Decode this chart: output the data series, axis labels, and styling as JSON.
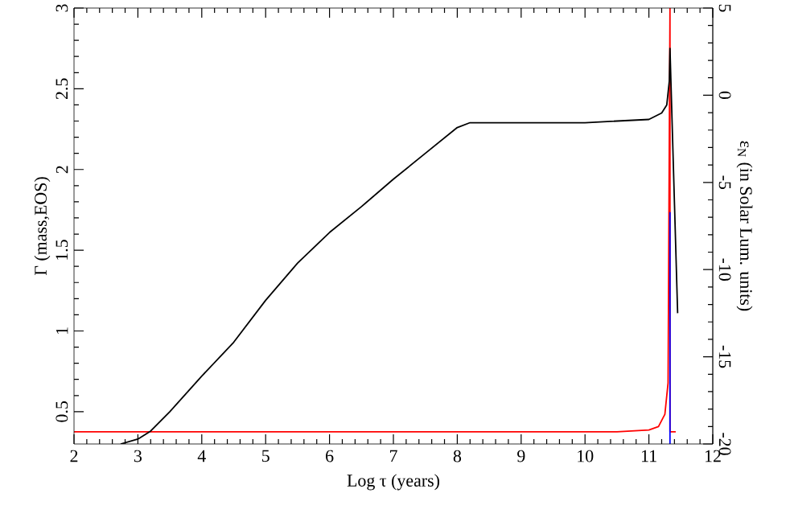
{
  "chart_data": {
    "type": "line",
    "xlabel": "Log τ (years)",
    "ylabel": "Γ (mass,EOS)",
    "y2label": "ε$_{N}$ (in Solar Lum. units)",
    "xlim": [
      2,
      12
    ],
    "xticks": [
      2,
      3,
      4,
      5,
      6,
      7,
      8,
      9,
      10,
      11,
      12
    ],
    "ylim": [
      0.3,
      3
    ],
    "yticks": [
      0.5,
      1,
      1.5,
      2,
      2.5,
      3
    ],
    "y2lim": [
      -20,
      5
    ],
    "y2ticks": [
      -20,
      -15,
      -10,
      -5,
      0,
      5
    ],
    "grid": false,
    "marker": "none",
    "line_style": "solid",
    "series": [
      {
        "color": "#000000",
        "x": [
          2.73,
          3.0,
          3.2,
          3.5,
          4.0,
          4.5,
          5.0,
          5.5,
          6.0,
          6.5,
          7.0,
          7.5,
          8.0,
          8.2,
          8.5,
          9,
          10,
          10.5,
          11,
          11.2,
          11.28,
          11.32,
          11.33,
          11.45
        ],
        "values": [
          0.3,
          0.33,
          0.38,
          0.5,
          0.72,
          0.93,
          1.19,
          1.42,
          1.61,
          1.77,
          1.94,
          2.1,
          2.26,
          2.29,
          2.29,
          2.29,
          2.29,
          2.3,
          2.31,
          2.35,
          2.4,
          2.55,
          2.75,
          1.11
        ]
      },
      {
        "color": "#ff0000",
        "axis": "y2",
        "x": [
          2,
          10.5,
          11.0,
          11.15,
          11.25,
          11.3,
          11.33,
          11.33,
          11.42
        ],
        "values": [
          -19.3,
          -19.3,
          -19.2,
          -19.0,
          -18.3,
          -16.5,
          5,
          -19.3,
          -19.3
        ]
      },
      {
        "color": "#0000ff",
        "axis": "y2",
        "x": [
          11.33,
          11.33
        ],
        "values": [
          -20,
          -6.7
        ]
      }
    ]
  }
}
